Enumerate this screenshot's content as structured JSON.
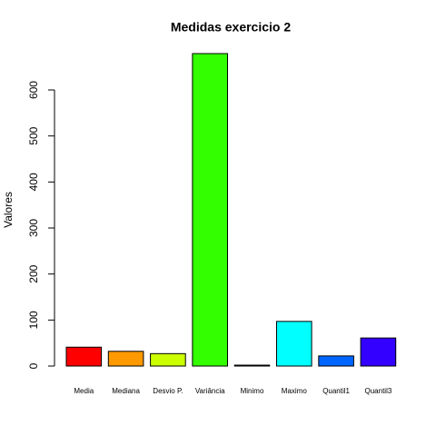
{
  "chart_data": {
    "type": "bar",
    "title": "Medidas exercicio 2",
    "y_label": "Valores",
    "categories": [
      "Media",
      "Mediana",
      "Desvio P.",
      "Variância",
      "Minimo",
      "Maximo",
      "Quantil1",
      "Quantil3"
    ],
    "values": [
      41,
      32,
      27,
      679,
      2,
      97,
      22,
      61
    ],
    "colors": [
      "#FF0000",
      "#FF9900",
      "#CCFF00",
      "#33FF00",
      "#00FF66",
      "#00FFFF",
      "#0066FF",
      "#3300FF"
    ],
    "ylim": [
      0,
      679
    ],
    "yticks": [
      0,
      100,
      200,
      300,
      400,
      500,
      600
    ]
  }
}
